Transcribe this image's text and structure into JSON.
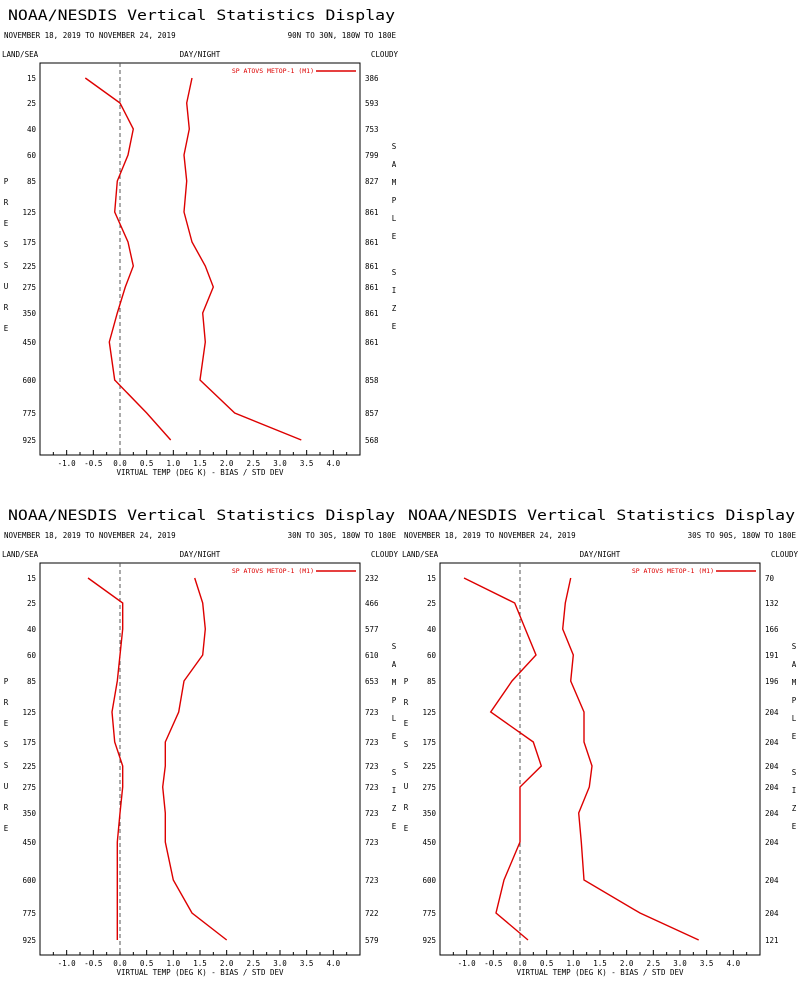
{
  "panels": [
    {
      "id": "p1",
      "title": "NOAA/NESDIS Vertical Statistics Display",
      "dates": "NOVEMBER 18, 2019 TO NOVEMBER 24, 2019",
      "region": "90N TO 30N, 180W TO 180E",
      "left_label": "LAND/SEA",
      "center_label": "DAY/NIGHT",
      "right_label": "CLOUDY",
      "pressure_letters": [
        "P",
        "R",
        "E",
        "S",
        "S",
        "U",
        "R",
        "E"
      ],
      "sample_letters": [
        "S",
        "A",
        "M",
        "P",
        "L",
        "E",
        "",
        "S",
        "I",
        "Z",
        "E"
      ],
      "xlabel": "VIRTUAL TEMP (DEG K) - BIAS / STD DEV",
      "legend": "SP ATOVS METOP-1 (M1)",
      "sample_sizes": [
        "386",
        "593",
        "753",
        "799",
        "827",
        "861",
        "861",
        "861",
        "861",
        "861",
        "861",
        "858",
        "857",
        "568"
      ]
    },
    {
      "id": "p2",
      "title": "NOAA/NESDIS Vertical Statistics Display",
      "dates": "NOVEMBER 18, 2019 TO NOVEMBER 24, 2019",
      "region": "30N TO 30S, 180W TO 180E",
      "left_label": "LAND/SEA",
      "center_label": "DAY/NIGHT",
      "right_label": "CLOUDY",
      "pressure_letters": [
        "P",
        "R",
        "E",
        "S",
        "S",
        "U",
        "R",
        "E"
      ],
      "sample_letters": [
        "S",
        "A",
        "M",
        "P",
        "L",
        "E",
        "",
        "S",
        "I",
        "Z",
        "E"
      ],
      "xlabel": "VIRTUAL TEMP (DEG K) - BIAS / STD DEV",
      "legend": "SP ATOVS METOP-1 (M1)",
      "sample_sizes": [
        "232",
        "466",
        "577",
        "610",
        "653",
        "723",
        "723",
        "723",
        "723",
        "723",
        "723",
        "723",
        "722",
        "579"
      ]
    },
    {
      "id": "p3",
      "title": "NOAA/NESDIS Vertical Statistics Display",
      "dates": "NOVEMBER 18, 2019 TO NOVEMBER 24, 2019",
      "region": "30S TO 90S, 180W TO 180E",
      "left_label": "LAND/SEA",
      "center_label": "DAY/NIGHT",
      "right_label": "CLOUDY",
      "pressure_letters": [
        "P",
        "R",
        "E",
        "S",
        "S",
        "U",
        "R",
        "E"
      ],
      "sample_letters": [
        "S",
        "A",
        "M",
        "P",
        "L",
        "E",
        "",
        "S",
        "I",
        "Z",
        "E"
      ],
      "xlabel": "VIRTUAL TEMP (DEG K) - BIAS / STD DEV",
      "legend": "SP ATOVS METOP-1 (M1)",
      "sample_sizes": [
        "70",
        "132",
        "166",
        "191",
        "196",
        "204",
        "204",
        "204",
        "204",
        "204",
        "204",
        "204",
        "204",
        "121"
      ]
    }
  ],
  "chart_data": [
    {
      "type": "line",
      "title": "NOAA/NESDIS Vertical Statistics Display",
      "xlabel": "VIRTUAL TEMP (DEG K) - BIAS / STD DEV",
      "ylabel": "PRESSURE",
      "y2label": "SAMPLE SIZE",
      "xlim": [
        -1.5,
        4.5
      ],
      "xticks": [
        "-1.0",
        "-0.5",
        "0.0",
        "0.5",
        "1.0",
        "1.5",
        "2.0",
        "2.5",
        "3.0",
        "3.5",
        "4.0"
      ],
      "pressure_levels": [
        "15",
        "25",
        "40",
        "60",
        "85",
        "125",
        "175",
        "225",
        "275",
        "350",
        "450",
        "600",
        "775",
        "925"
      ],
      "legend_placement": "top-right",
      "grid": false,
      "series_color": "#dd0000",
      "series": [
        {
          "values": [
            -0.65,
            0.0,
            0.25,
            0.15,
            -0.05,
            -0.1,
            0.15,
            0.25,
            0.1,
            -0.05,
            -0.2,
            -0.1,
            0.5,
            0.95
          ]
        },
        {
          "values": [
            1.35,
            1.25,
            1.3,
            1.2,
            1.25,
            1.2,
            1.35,
            1.6,
            1.75,
            1.55,
            1.6,
            1.5,
            2.15,
            3.4
          ]
        }
      ]
    },
    {
      "type": "line",
      "title": "NOAA/NESDIS Vertical Statistics Display",
      "xlabel": "VIRTUAL TEMP (DEG K) - BIAS / STD DEV",
      "ylabel": "PRESSURE",
      "y2label": "SAMPLE SIZE",
      "xlim": [
        -1.5,
        4.5
      ],
      "xticks": [
        "-1.0",
        "-0.5",
        "0.0",
        "0.5",
        "1.0",
        "1.5",
        "2.0",
        "2.5",
        "3.0",
        "3.5",
        "4.0"
      ],
      "pressure_levels": [
        "15",
        "25",
        "40",
        "60",
        "85",
        "125",
        "175",
        "225",
        "275",
        "350",
        "450",
        "600",
        "775",
        "925"
      ],
      "legend_placement": "top-right",
      "grid": false,
      "series_color": "#dd0000",
      "series": [
        {
          "values": [
            -0.6,
            0.05,
            0.05,
            0.0,
            -0.05,
            -0.15,
            -0.1,
            0.05,
            0.05,
            0.0,
            -0.05,
            -0.05,
            -0.05,
            -0.05
          ]
        },
        {
          "values": [
            1.4,
            1.55,
            1.6,
            1.55,
            1.2,
            1.1,
            0.85,
            0.85,
            0.8,
            0.85,
            0.85,
            1.0,
            1.35,
            2.0
          ]
        }
      ]
    },
    {
      "type": "line",
      "title": "NOAA/NESDIS Vertical Statistics Display",
      "xlabel": "VIRTUAL TEMP (DEG K) - BIAS / STD DEV",
      "ylabel": "PRESSURE",
      "y2label": "SAMPLE SIZE",
      "xlim": [
        -1.5,
        4.5
      ],
      "xticks": [
        "-1.0",
        "-0.5",
        "0.0",
        "0.5",
        "1.0",
        "1.5",
        "2.0",
        "2.5",
        "3.0",
        "3.5",
        "4.0"
      ],
      "pressure_levels": [
        "15",
        "25",
        "40",
        "60",
        "85",
        "125",
        "175",
        "225",
        "275",
        "350",
        "450",
        "600",
        "775",
        "925"
      ],
      "legend_placement": "top-right",
      "grid": false,
      "series_color": "#dd0000",
      "series": [
        {
          "values": [
            -1.05,
            -0.1,
            0.1,
            0.3,
            -0.15,
            -0.55,
            0.25,
            0.4,
            0.0,
            0.0,
            0.0,
            -0.3,
            -0.45,
            0.15
          ]
        },
        {
          "values": [
            0.95,
            0.85,
            0.8,
            1.0,
            0.95,
            1.2,
            1.2,
            1.35,
            1.3,
            1.1,
            1.15,
            1.2,
            2.25,
            3.35
          ]
        }
      ]
    }
  ]
}
